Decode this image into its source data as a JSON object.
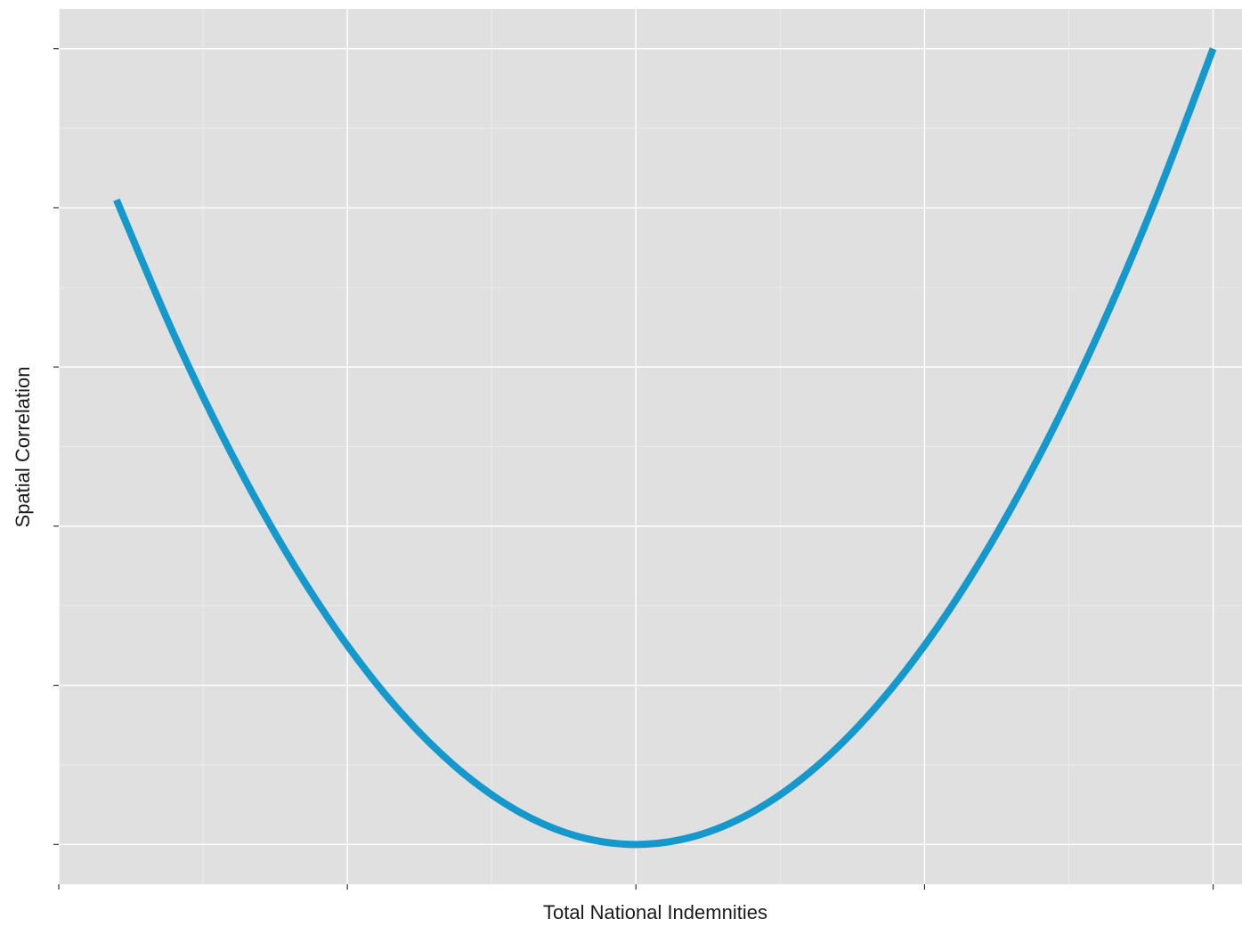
{
  "chart_data": {
    "type": "line",
    "title": "",
    "xlabel": "Total National Indemnities",
    "ylabel": "Spatial Correlation",
    "x_ticks": [
      -2,
      -1,
      0,
      1,
      2
    ],
    "y_ticks": [
      0,
      1,
      2,
      3,
      4,
      5
    ],
    "x_tick_labels": [],
    "y_tick_labels": [],
    "xlim": [
      -2,
      2.1
    ],
    "ylim": [
      -0.25,
      5.25
    ],
    "grid": true,
    "legend": "none",
    "series": [
      {
        "color": "#1599cc",
        "x": [
          -1.8,
          -1.6,
          -1.4,
          -1.2,
          -1.0,
          -0.8,
          -0.6,
          -0.4,
          -0.2,
          0.0,
          0.2,
          0.4,
          0.6,
          0.8,
          1.0,
          1.2,
          1.4,
          1.6,
          1.8,
          2.0
        ],
        "y": [
          4.05,
          3.2,
          2.45,
          1.8,
          1.25,
          0.8,
          0.45,
          0.2,
          0.05,
          0.0,
          0.05,
          0.2,
          0.45,
          0.8,
          1.25,
          1.8,
          2.45,
          3.2,
          4.05,
          5.0
        ]
      }
    ]
  },
  "colors": {
    "panel_background": "#e0e0e0",
    "grid_major": "#ffffff",
    "grid_minor": "#ebebeb",
    "axis_ticks": "#333333"
  }
}
